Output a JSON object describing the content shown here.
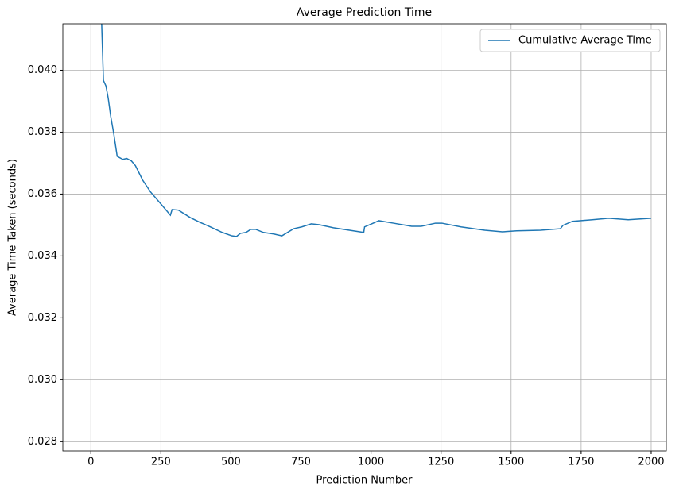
{
  "chart_data": {
    "type": "line",
    "title": "Average Prediction Time",
    "xlabel": "Prediction Number",
    "ylabel": "Average Time Taken (seconds)",
    "x": [
      30,
      45,
      54,
      62,
      71,
      82,
      94,
      114,
      128,
      145,
      159,
      185,
      213,
      250,
      284,
      290,
      313,
      355,
      389,
      426,
      469,
      503,
      520,
      534,
      554,
      571,
      588,
      616,
      653,
      682,
      724,
      753,
      787,
      815,
      866,
      923,
      974,
      977,
      1003,
      1028,
      1080,
      1145,
      1179,
      1230,
      1253,
      1321,
      1406,
      1469,
      1520,
      1605,
      1676,
      1685,
      1719,
      1790,
      1849,
      1918,
      2000
    ],
    "series": [
      {
        "name": "Cumulative Average Time",
        "color": "#1f77b4",
        "values": [
          0.044,
          0.03967,
          0.03949,
          0.0391,
          0.03851,
          0.03794,
          0.03722,
          0.03712,
          0.03715,
          0.03707,
          0.03692,
          0.03645,
          0.03607,
          0.03568,
          0.03532,
          0.0355,
          0.03548,
          0.03524,
          0.03509,
          0.03494,
          0.03476,
          0.03465,
          0.03463,
          0.03473,
          0.03476,
          0.03486,
          0.03486,
          0.03476,
          0.03471,
          0.03465,
          0.03488,
          0.03494,
          0.03504,
          0.03501,
          0.03491,
          0.03483,
          0.03476,
          0.03494,
          0.03504,
          0.03514,
          0.03506,
          0.03496,
          0.03496,
          0.03506,
          0.03506,
          0.03494,
          0.03483,
          0.03478,
          0.03481,
          0.03483,
          0.03488,
          0.03499,
          0.03512,
          0.03517,
          0.03522,
          0.03517,
          0.03522
        ]
      }
    ],
    "xlim": [
      -100,
      2054
    ],
    "ylim": [
      0.0277,
      0.0415
    ],
    "xticks": [
      0,
      250,
      500,
      750,
      1000,
      1250,
      1500,
      1750,
      2000
    ],
    "yticks": [
      0.028,
      {
        "value": 0.03,
        "label": "0.030"
      },
      0.032,
      0.034,
      0.036,
      0.038,
      {
        "value": 0.04,
        "label": "0.040"
      }
    ],
    "grid": true,
    "legend": "upper right"
  }
}
